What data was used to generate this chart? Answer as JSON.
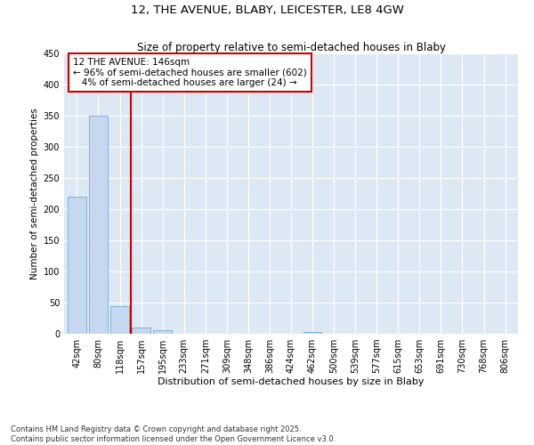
{
  "title1": "12, THE AVENUE, BLABY, LEICESTER, LE8 4GW",
  "title2": "Size of property relative to semi-detached houses in Blaby",
  "xlabel": "Distribution of semi-detached houses by size in Blaby",
  "ylabel": "Number of semi-detached properties",
  "footnote": "Contains HM Land Registry data © Crown copyright and database right 2025.\nContains public sector information licensed under the Open Government Licence v3.0.",
  "bin_labels": [
    "42sqm",
    "80sqm",
    "118sqm",
    "157sqm",
    "195sqm",
    "233sqm",
    "271sqm",
    "309sqm",
    "348sqm",
    "386sqm",
    "424sqm",
    "462sqm",
    "500sqm",
    "539sqm",
    "577sqm",
    "615sqm",
    "653sqm",
    "691sqm",
    "730sqm",
    "768sqm",
    "806sqm"
  ],
  "bar_values": [
    220,
    350,
    45,
    10,
    6,
    0,
    0,
    0,
    0,
    0,
    0,
    3,
    0,
    0,
    0,
    0,
    0,
    0,
    0,
    0,
    0
  ],
  "bar_color": "#c5d8f0",
  "bar_edge_color": "#7bafd4",
  "background_color": "#dce9f5",
  "grid_color": "#ffffff",
  "vline_x_index": 2.52,
  "vline_color": "#cc0000",
  "annotation_line1": "12 THE AVENUE: 146sqm",
  "annotation_line2": "← 96% of semi-detached houses are smaller (602)",
  "annotation_line3": "   4% of semi-detached houses are larger (24) →",
  "annotation_box_color": "#cc0000",
  "ylim": [
    0,
    450
  ],
  "yticks": [
    0,
    50,
    100,
    150,
    200,
    250,
    300,
    350,
    400,
    450
  ],
  "title1_fontsize": 9.5,
  "title2_fontsize": 8.5,
  "xlabel_fontsize": 8,
  "ylabel_fontsize": 7.5,
  "tick_fontsize": 7,
  "annot_fontsize": 7.5
}
